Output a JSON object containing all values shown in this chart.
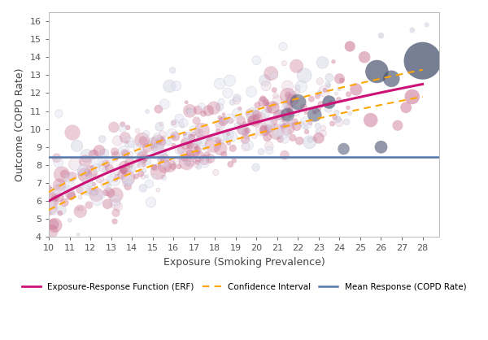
{
  "title": "",
  "xlabel": "Exposure (Smoking Prevalence)",
  "ylabel": "Outcome (COPD Rate)",
  "xlim": [
    10,
    28.8
  ],
  "ylim": [
    4,
    16.5
  ],
  "xticks": [
    10,
    11,
    12,
    13,
    14,
    15,
    16,
    17,
    18,
    19,
    20,
    21,
    22,
    23,
    24,
    25,
    26,
    27,
    28
  ],
  "yticks": [
    4,
    5,
    6,
    7,
    8,
    9,
    10,
    11,
    12,
    13,
    14,
    15,
    16
  ],
  "erf_color": "#CC1177",
  "ci_color": "#FFA500",
  "mean_color": "#5577AA",
  "mean_y": 8.45,
  "scatter_pink_color": "#C87090",
  "scatter_gray_color": "#AAAACC",
  "scatter_dark_color": "#556688",
  "background_color": "#FFFFFF",
  "legend_erf_label": "Exposure-Response Function (ERF)",
  "legend_ci_label": "Confidence Interval",
  "legend_mean_label": "Mean Response (COPD Rate)"
}
